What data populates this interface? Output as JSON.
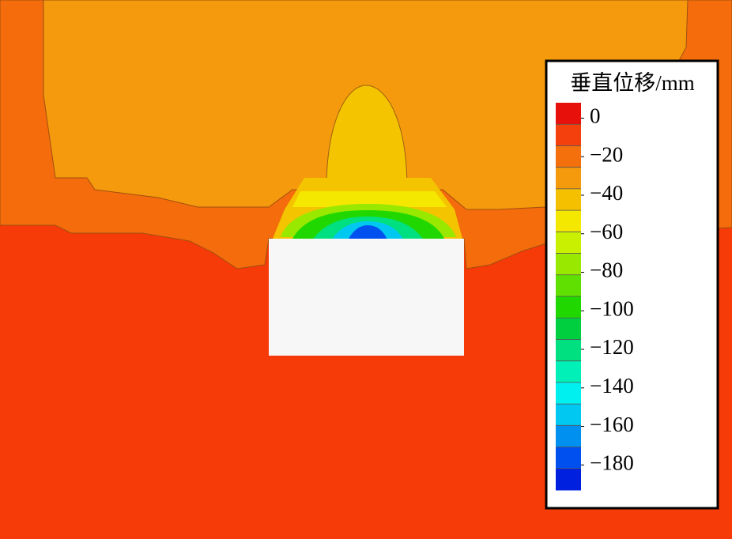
{
  "chart_data": {
    "type": "contour",
    "title": "垂直位移/mm",
    "clim": [
      8,
      -193
    ],
    "colors": [
      "#e8100a",
      "#f4400c",
      "#f4700c",
      "#f59a0c",
      "#f5c000",
      "#f5e800",
      "#c8f000",
      "#98e800",
      "#60e000",
      "#20d800",
      "#00d040",
      "#00e080",
      "#00f0b8",
      "#00f0f0",
      "#00c8f0",
      "#0090f0",
      "#0050f0",
      "#0020e0"
    ],
    "ticks": [
      0,
      {
        "value": -20,
        "label": "−20"
      },
      {
        "value": -40,
        "label": "−40"
      },
      {
        "value": -60,
        "label": "−60"
      },
      {
        "value": -80,
        "label": "−80"
      },
      {
        "value": -100,
        "label": "−100"
      },
      {
        "value": -120,
        "label": "−120"
      },
      {
        "value": -140,
        "label": "−140"
      },
      {
        "value": -160,
        "label": "−160"
      },
      {
        "value": -180,
        "label": "−180"
      }
    ]
  }
}
